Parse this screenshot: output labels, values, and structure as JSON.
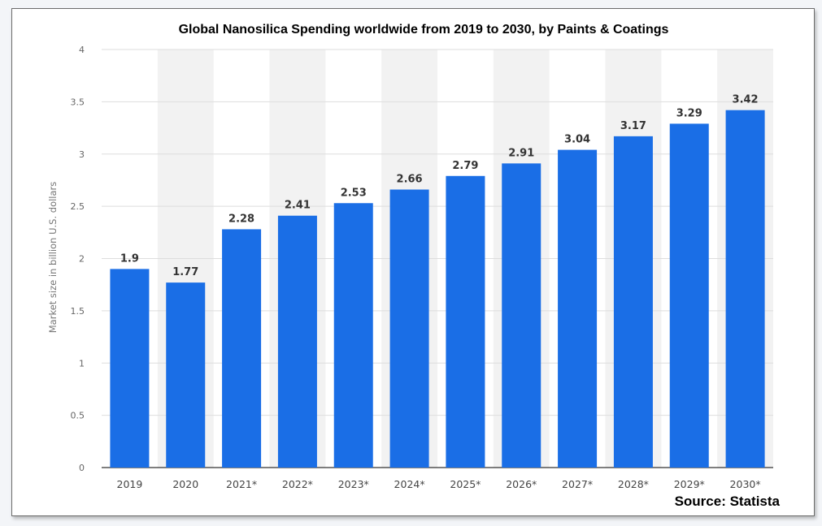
{
  "chart_data": {
    "type": "bar",
    "title": "Global Nanosilica Spending worldwide from 2019 to 2030, by Paints & Coatings",
    "xlabel": "",
    "ylabel": "Market size in billion U.S. dollars",
    "categories": [
      "2019",
      "2020",
      "2021*",
      "2022*",
      "2023*",
      "2024*",
      "2025*",
      "2026*",
      "2027*",
      "2028*",
      "2029*",
      "2030*"
    ],
    "values": [
      1.9,
      1.77,
      2.28,
      2.41,
      2.53,
      2.66,
      2.79,
      2.91,
      3.04,
      3.17,
      3.29,
      3.42
    ],
    "data_labels": [
      "1.9",
      "1.77",
      "2.28",
      "2.41",
      "2.53",
      "2.66",
      "2.79",
      "2.91",
      "3.04",
      "3.17",
      "3.29",
      "3.42"
    ],
    "ylim": [
      0,
      4
    ],
    "yticks": [
      "0",
      "0.5",
      "1",
      "1.5",
      "2",
      "2.5",
      "3",
      "3.5",
      "4"
    ],
    "ytick_values": [
      0,
      0.5,
      1,
      1.5,
      2,
      2.5,
      3,
      3.5,
      4
    ],
    "grid": true,
    "legend": "none",
    "bar_color": "#1a6ee6",
    "band_color": "#f2f2f2",
    "source": "Source: Statista"
  }
}
